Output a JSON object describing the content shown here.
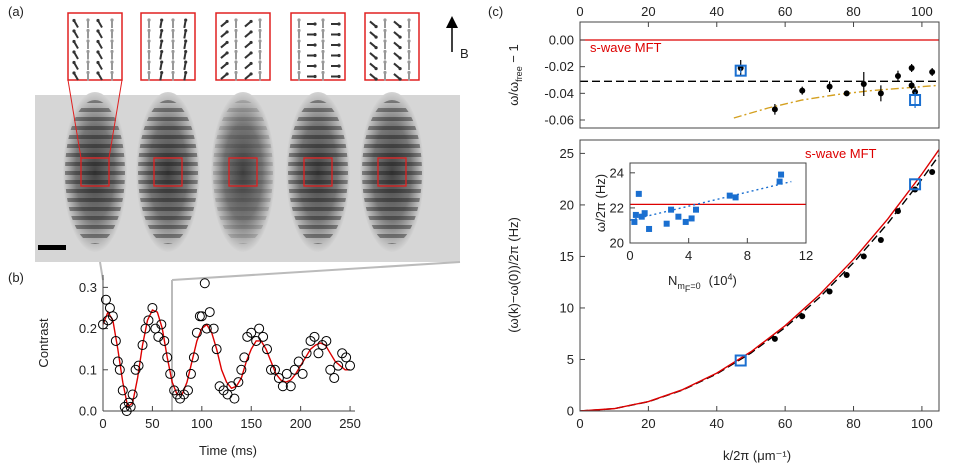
{
  "labels": {
    "a": "(a)",
    "b": "(b)",
    "c": "(c)",
    "field": "B"
  },
  "chart_data": [
    {
      "type": "scatter",
      "xlabel": "Time (ms)",
      "ylabel": "Contrast",
      "xlim": [
        0,
        255
      ],
      "ylim": [
        0,
        0.33
      ],
      "xticks": [
        0,
        50,
        100,
        150,
        200,
        250
      ],
      "yticks": [
        {
          "value": 0,
          "label": "0.0"
        },
        0.1,
        0.2,
        0.3
      ],
      "series": [
        {
          "marker": "circle",
          "color": "#000000",
          "x": [
            0,
            3,
            5,
            7,
            10,
            13,
            15,
            17,
            20,
            22,
            24,
            26,
            28,
            30,
            33,
            36,
            40,
            43,
            46,
            50,
            53,
            56,
            59,
            62,
            65,
            68,
            72,
            75,
            78,
            82,
            86,
            89,
            92,
            95,
            98,
            100,
            103,
            105,
            108,
            112,
            115,
            118,
            122,
            126,
            130,
            133,
            137,
            140,
            143,
            146,
            150,
            155,
            158,
            162,
            166,
            170,
            174,
            178,
            182,
            186,
            190,
            194,
            198,
            202,
            206,
            210,
            214,
            218,
            222,
            226,
            230,
            234,
            238,
            242,
            246,
            250
          ],
          "values": [
            0.21,
            0.27,
            0.22,
            0.25,
            0.23,
            0.17,
            0.12,
            0.1,
            0.05,
            0.01,
            0.0,
            0.02,
            0.01,
            0.04,
            0.1,
            0.11,
            0.16,
            0.2,
            0.22,
            0.25,
            0.2,
            0.18,
            0.21,
            0.17,
            0.13,
            0.09,
            0.05,
            0.04,
            0.03,
            0.04,
            0.05,
            0.09,
            0.13,
            0.19,
            0.23,
            0.23,
            0.31,
            0.2,
            0.24,
            0.2,
            0.15,
            0.06,
            0.05,
            0.04,
            0.06,
            0.03,
            0.07,
            0.1,
            0.13,
            0.18,
            0.19,
            0.17,
            0.2,
            0.18,
            0.15,
            0.1,
            0.1,
            0.08,
            0.06,
            0.09,
            0.06,
            0.1,
            0.12,
            0.09,
            0.14,
            0.17,
            0.18,
            0.14,
            0.16,
            0.17,
            0.1,
            0.08,
            0.11,
            0.14,
            0.13,
            0.11
          ]
        },
        {
          "line": "solid",
          "color": "#dd0000",
          "x": [
            0,
            5,
            10,
            15,
            20,
            25,
            30,
            35,
            40,
            45,
            50,
            55,
            60,
            65,
            70,
            75,
            80,
            85,
            90,
            95,
            100,
            105,
            110,
            115,
            120,
            125,
            130,
            135,
            140,
            145,
            150,
            155,
            160,
            165,
            170,
            175,
            180,
            185,
            190,
            195,
            200,
            205,
            210,
            215,
            220,
            225,
            230,
            235,
            240,
            245,
            250
          ],
          "values": [
            0.21,
            0.24,
            0.22,
            0.15,
            0.07,
            0.01,
            0.02,
            0.08,
            0.16,
            0.22,
            0.245,
            0.24,
            0.2,
            0.13,
            0.07,
            0.04,
            0.04,
            0.07,
            0.12,
            0.17,
            0.2,
            0.21,
            0.19,
            0.15,
            0.1,
            0.07,
            0.055,
            0.06,
            0.08,
            0.12,
            0.15,
            0.17,
            0.17,
            0.15,
            0.12,
            0.09,
            0.075,
            0.07,
            0.075,
            0.09,
            0.11,
            0.13,
            0.15,
            0.16,
            0.165,
            0.16,
            0.14,
            0.12,
            0.11,
            0.1,
            0.1
          ]
        }
      ]
    },
    {
      "type": "scatter",
      "ylabel": [
        "ω/ω",
        "free",
        " − 1"
      ],
      "xlim": [
        0,
        105
      ],
      "ylim": [
        -0.066,
        0.0135
      ],
      "xticks": [
        0,
        20,
        40,
        60,
        80,
        100
      ],
      "yticks": [
        -0.06,
        -0.04,
        -0.02,
        {
          "value": 0,
          "label": "0.00"
        }
      ],
      "hlines": [
        {
          "value": 0,
          "color": "#dd0000",
          "line": "solid"
        },
        {
          "value": -0.031,
          "color": "#000000",
          "line": "dashed"
        }
      ],
      "annotations": [
        "s-wave MFT"
      ],
      "series": [
        {
          "line": "dashdot",
          "color": "#d4a020",
          "x": [
            45,
            55,
            65,
            75,
            85,
            95,
            105
          ],
          "values": [
            -0.0585,
            -0.051,
            -0.045,
            -0.041,
            -0.038,
            -0.036,
            -0.034
          ]
        },
        {
          "marker": "dot",
          "color": "#000000",
          "x": [
            47,
            57,
            65,
            73,
            78,
            83,
            88,
            93,
            97,
            97,
            98,
            103
          ],
          "values": [
            -0.021,
            -0.052,
            -0.038,
            -0.035,
            -0.04,
            -0.033,
            -0.04,
            -0.027,
            -0.021,
            -0.034,
            -0.039,
            -0.024
          ],
          "errors": [
            0.006,
            0.004,
            0.003,
            0.004,
            0.002,
            0.009,
            0.006,
            0.004,
            0.003,
            0.003,
            0.004,
            0.003
          ]
        },
        {
          "marker": "bigsquare",
          "color": "#1a6fd0",
          "x": [
            47,
            98
          ],
          "values": [
            -0.023,
            -0.045
          ],
          "errors": [
            0.002,
            0.006
          ]
        }
      ]
    },
    {
      "type": "scatter",
      "xlabel": "k/2π (μm⁻¹)",
      "ylabel": "(ω(k)−ω(0))/2π (Hz)",
      "xlim": [
        0,
        105
      ],
      "ylim": [
        0,
        26.3
      ],
      "xticks": [
        0,
        20,
        40,
        60,
        80,
        100
      ],
      "yticks": [
        0,
        5,
        10,
        15,
        20,
        25
      ],
      "annotations": [
        "s-wave MFT"
      ],
      "series": [
        {
          "line": "dashed",
          "color": "#000000",
          "x": [
            0,
            10,
            20,
            30,
            40,
            50,
            60,
            70,
            80,
            90,
            100,
            105
          ],
          "values": [
            0,
            0.225,
            0.9,
            2.03,
            3.6,
            5.63,
            8.1,
            11.0,
            14.4,
            18.2,
            22.5,
            24.8
          ]
        },
        {
          "line": "solid",
          "color": "#dd0000",
          "x": [
            0,
            10,
            20,
            30,
            40,
            50,
            60,
            70,
            80,
            90,
            100,
            105
          ],
          "values": [
            0,
            0.23,
            0.92,
            2.07,
            3.68,
            5.75,
            8.28,
            11.27,
            14.72,
            18.63,
            23.0,
            25.36
          ]
        },
        {
          "marker": "dot",
          "color": "#000000",
          "x": [
            57,
            65,
            73,
            78,
            83,
            88,
            93,
            98,
            103
          ],
          "values": [
            7,
            9.2,
            11.6,
            13.2,
            15,
            16.6,
            19.4,
            21.5,
            23.2
          ]
        },
        {
          "marker": "bigsquare",
          "color": "#1a6fd0",
          "x": [
            47,
            98
          ],
          "values": [
            4.9,
            22
          ]
        }
      ]
    },
    {
      "type": "scatter",
      "xlabel": [
        "N",
        "m",
        "F",
        "=0",
        "(10",
        "4",
        ")"
      ],
      "ylabel": "ω/2π (Hz)",
      "xlim": [
        0,
        12
      ],
      "ylim": [
        20,
        24.56
      ],
      "xticks": [
        0,
        4,
        8,
        12
      ],
      "yticks": [
        20,
        22,
        24
      ],
      "hlines": [
        {
          "value": 22.2,
          "color": "#dd0000",
          "line": "solid"
        }
      ],
      "series": [
        {
          "marker": "square",
          "color": "#1a6fd0",
          "x": [
            0.3,
            0.4,
            0.6,
            0.8,
            1,
            1.3,
            2.5,
            2.8,
            3.3,
            3.8,
            4.2,
            4.5,
            6.8,
            7.2,
            10.2,
            10.3
          ],
          "values": [
            21.2,
            21.6,
            22.8,
            21.5,
            21.7,
            20.8,
            21.1,
            21.9,
            21.5,
            21.2,
            21.4,
            21.9,
            22.7,
            22.6,
            23.5,
            23.9
          ]
        },
        {
          "line": "dotted",
          "color": "#1a6fd0",
          "x": [
            0,
            11
          ],
          "values": [
            21.3,
            23.5
          ]
        }
      ]
    }
  ]
}
